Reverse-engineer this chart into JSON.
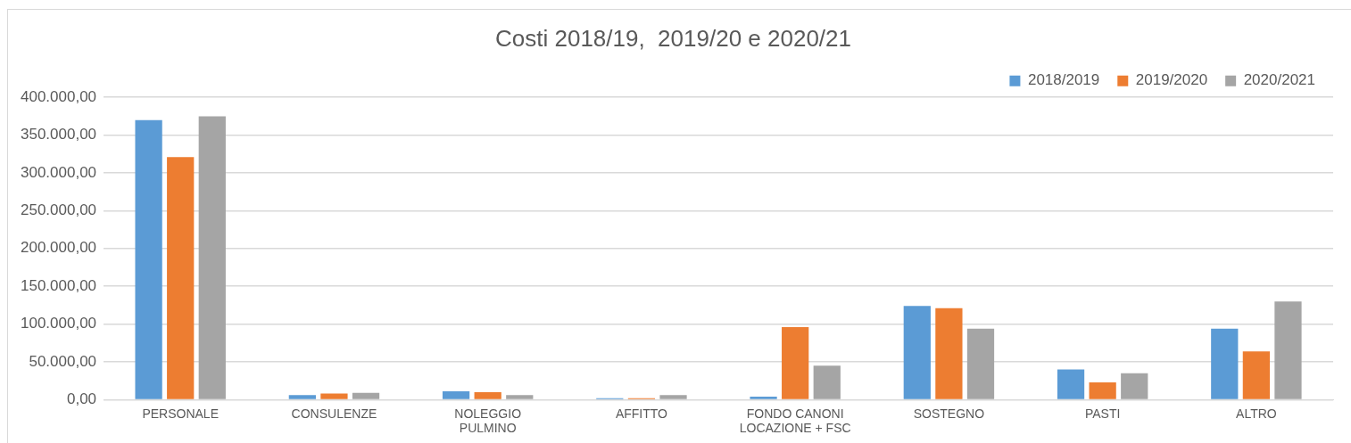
{
  "chart_data": {
    "type": "bar",
    "title": "Costi 2018/19,  2019/20 e 2020/21",
    "categories": [
      "PERSONALE",
      "CONSULENZE",
      "NOLEGGIO PULMINO",
      "AFFITTO",
      "FONDO CANONI LOCAZIONE + FSC",
      "SOSTEGNO",
      "PASTI",
      "ALTRO"
    ],
    "series": [
      {
        "name": "2018/2019",
        "color": "#5b9bd5",
        "values": [
          370000,
          6000,
          11000,
          2000,
          4000,
          124000,
          40000,
          94000
        ]
      },
      {
        "name": "2019/2020",
        "color": "#ed7d31",
        "values": [
          321000,
          8000,
          10000,
          2000,
          96000,
          121000,
          23000,
          64000
        ]
      },
      {
        "name": "2020/2021",
        "color": "#a5a5a5",
        "values": [
          375000,
          9000,
          6000,
          6000,
          45000,
          94000,
          35000,
          130000
        ]
      }
    ],
    "ylim": [
      0,
      400000
    ],
    "yticks": [
      {
        "value": 0,
        "label": "0,00"
      },
      {
        "value": 50000,
        "label": "50.000,00"
      },
      {
        "value": 100000,
        "label": "100.000,00"
      },
      {
        "value": 150000,
        "label": "150.000,00"
      },
      {
        "value": 200000,
        "label": "200.000,00"
      },
      {
        "value": 250000,
        "label": "250.000,00"
      },
      {
        "value": 300000,
        "label": "300.000,00"
      },
      {
        "value": 350000,
        "label": "350.000,00"
      },
      {
        "value": 400000,
        "label": "400.000,00"
      }
    ],
    "grid": "y",
    "legend": "top right"
  }
}
